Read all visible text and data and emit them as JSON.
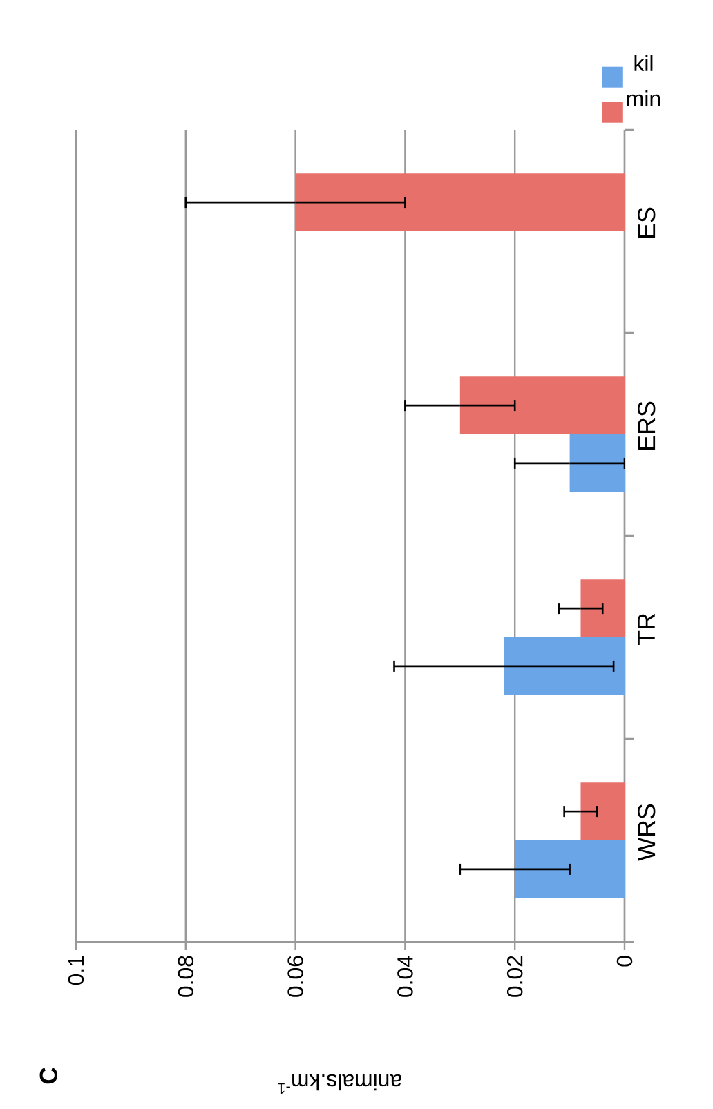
{
  "chart_data": {
    "type": "bar",
    "orientation": "horizontal",
    "title": "C",
    "xlabel": "animals.km$^{-1}$",
    "categories": [
      "ES",
      "ERS",
      "TR",
      "WRS"
    ],
    "series": [
      {
        "name": "kil",
        "color": "#6aa5e8",
        "values": [
          null,
          0.01,
          0.022,
          0.02
        ],
        "errors": [
          null,
          0.01,
          0.02,
          0.01
        ]
      },
      {
        "name": "min",
        "color": "#e8706a",
        "values": [
          0.06,
          0.03,
          0.008,
          0.008
        ],
        "errors": [
          0.02,
          0.01,
          0.004,
          0.003
        ]
      }
    ],
    "xlim": [
      0.1,
      0
    ],
    "xticks": [
      0,
      0.02,
      0.04,
      0.06,
      0.08,
      0.1
    ],
    "grid": "x",
    "legend": "top right"
  }
}
